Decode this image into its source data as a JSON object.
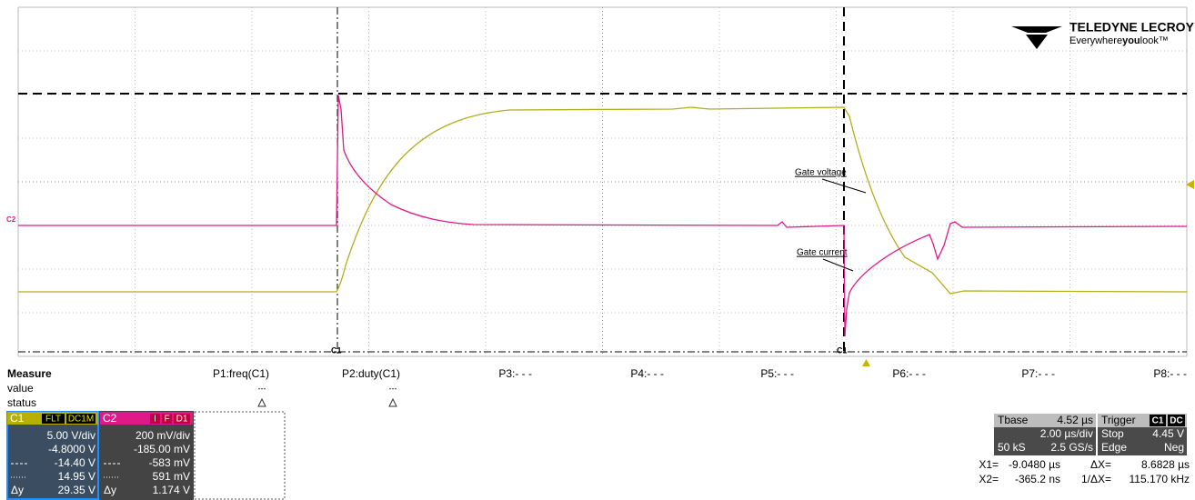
{
  "logo": {
    "brand": "TELEDYNE LECROY",
    "tagline": [
      "Everywhere",
      "you",
      "look™"
    ]
  },
  "traces": {
    "gate_voltage": "Gate voltage",
    "gate_current": "Gate current"
  },
  "markers": {
    "c2_offset": "C2",
    "cursor1_channel": "C1",
    "cursor2_channel": "C1"
  },
  "measure": {
    "title": "Measure",
    "params": [
      "P1:freq(C1)",
      "P2:duty(C1)",
      "P3:- - -",
      "P4:- - -",
      "P5:- - -",
      "P6:- - -",
      "P7:- - -",
      "P8:- - -"
    ],
    "value_label": "value",
    "values": [
      "---",
      "---"
    ],
    "status_label": "status"
  },
  "channels": [
    {
      "name": "C1",
      "tags": [
        "FLT",
        "DC1M"
      ],
      "scale": "5.00 V/div",
      "offset": "-4.8000 V",
      "cursor1": "-14.40 V",
      "cursor2": "14.95 V",
      "delta_label": "Δy",
      "delta": "29.35 V"
    },
    {
      "name": "C2",
      "tags": [
        "I",
        "F",
        "D1"
      ],
      "scale": "200 mV/div",
      "offset": "-185.00 mV",
      "cursor1": "-583 mV",
      "cursor2": "591 mV",
      "delta_label": "Δy",
      "delta": "1.174 V"
    }
  ],
  "timebase": {
    "label": "Tbase",
    "delay": "4.52 µs",
    "scale": "2.00 µs/div",
    "samples": "50 kS",
    "rate": "2.5 GS/s"
  },
  "trigger": {
    "label": "Trigger",
    "tags": [
      "C1",
      "DC"
    ],
    "mode": "Stop",
    "level": "4.45 V",
    "type": "Edge",
    "slope": "Neg"
  },
  "cursors": {
    "x1_label": "X1=",
    "x1": "-9.0480 µs",
    "dx_label": "ΔX=",
    "dx": "8.6828 µs",
    "x2_label": "X2=",
    "x2": "-365.2 ns",
    "inv_label": "1/ΔX=",
    "inv": "115.170 kHz"
  }
}
